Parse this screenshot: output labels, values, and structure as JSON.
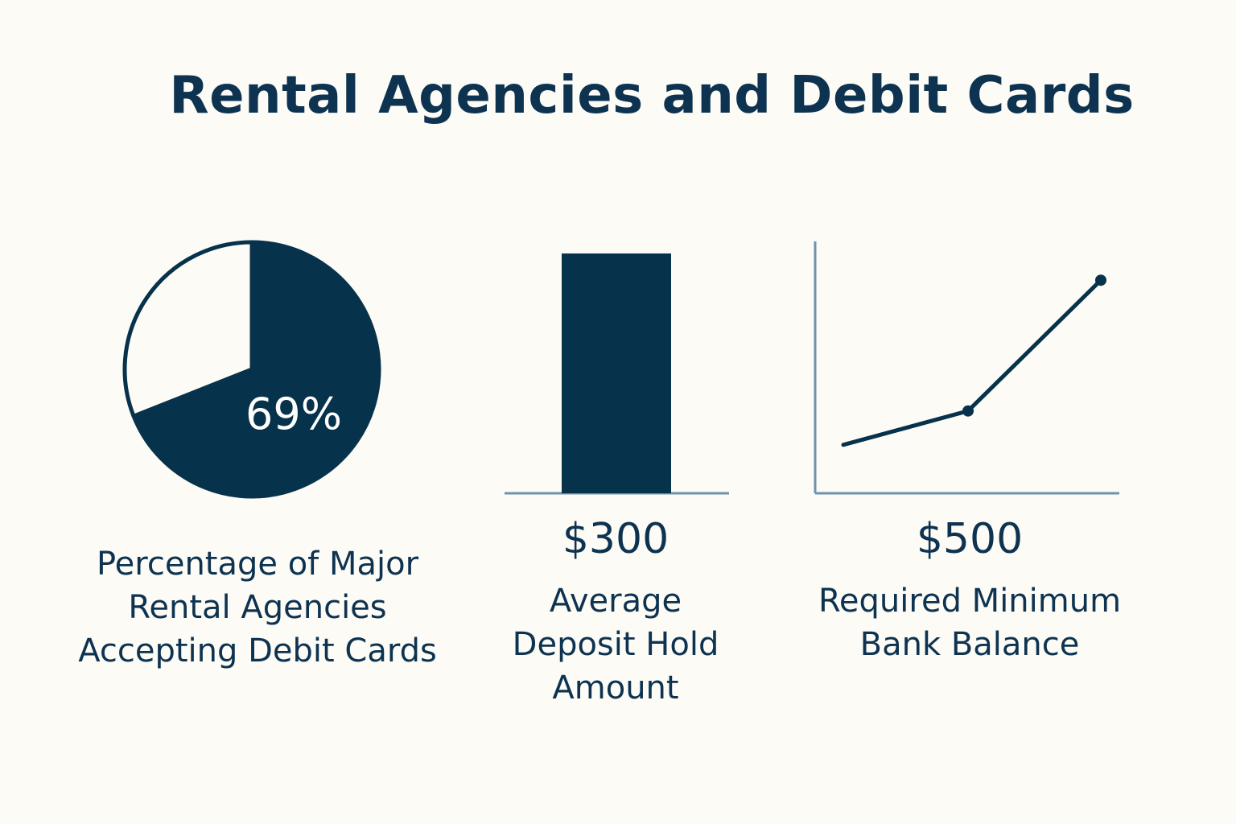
{
  "title": "Rental Agencies and Debit Cards",
  "colors": {
    "background": "#fcfbf6",
    "primary": "#07324c",
    "axis": "#6f93ad",
    "text": "#0e3350"
  },
  "chart_data": [
    {
      "type": "pie",
      "slices": [
        {
          "label": "Accepting Debit Cards",
          "value": 69,
          "filled": true
        },
        {
          "label": "",
          "value": 31,
          "filled": false
        }
      ],
      "data_label": "69%",
      "caption_lines": [
        "Percentage of Major",
        "Rental Agencies",
        "Accepting Debit Cards"
      ]
    },
    {
      "type": "bar",
      "values": [
        300
      ],
      "value_label": "$300",
      "caption_lines": [
        "Average",
        "Deposit Hold",
        "Amount"
      ]
    },
    {
      "type": "line",
      "y": [
        1,
        1.7,
        4.4
      ],
      "ylim": [
        0,
        5.2
      ],
      "value_label": "$500",
      "caption_lines": [
        "Required Minimum",
        "Bank Balance"
      ]
    }
  ]
}
